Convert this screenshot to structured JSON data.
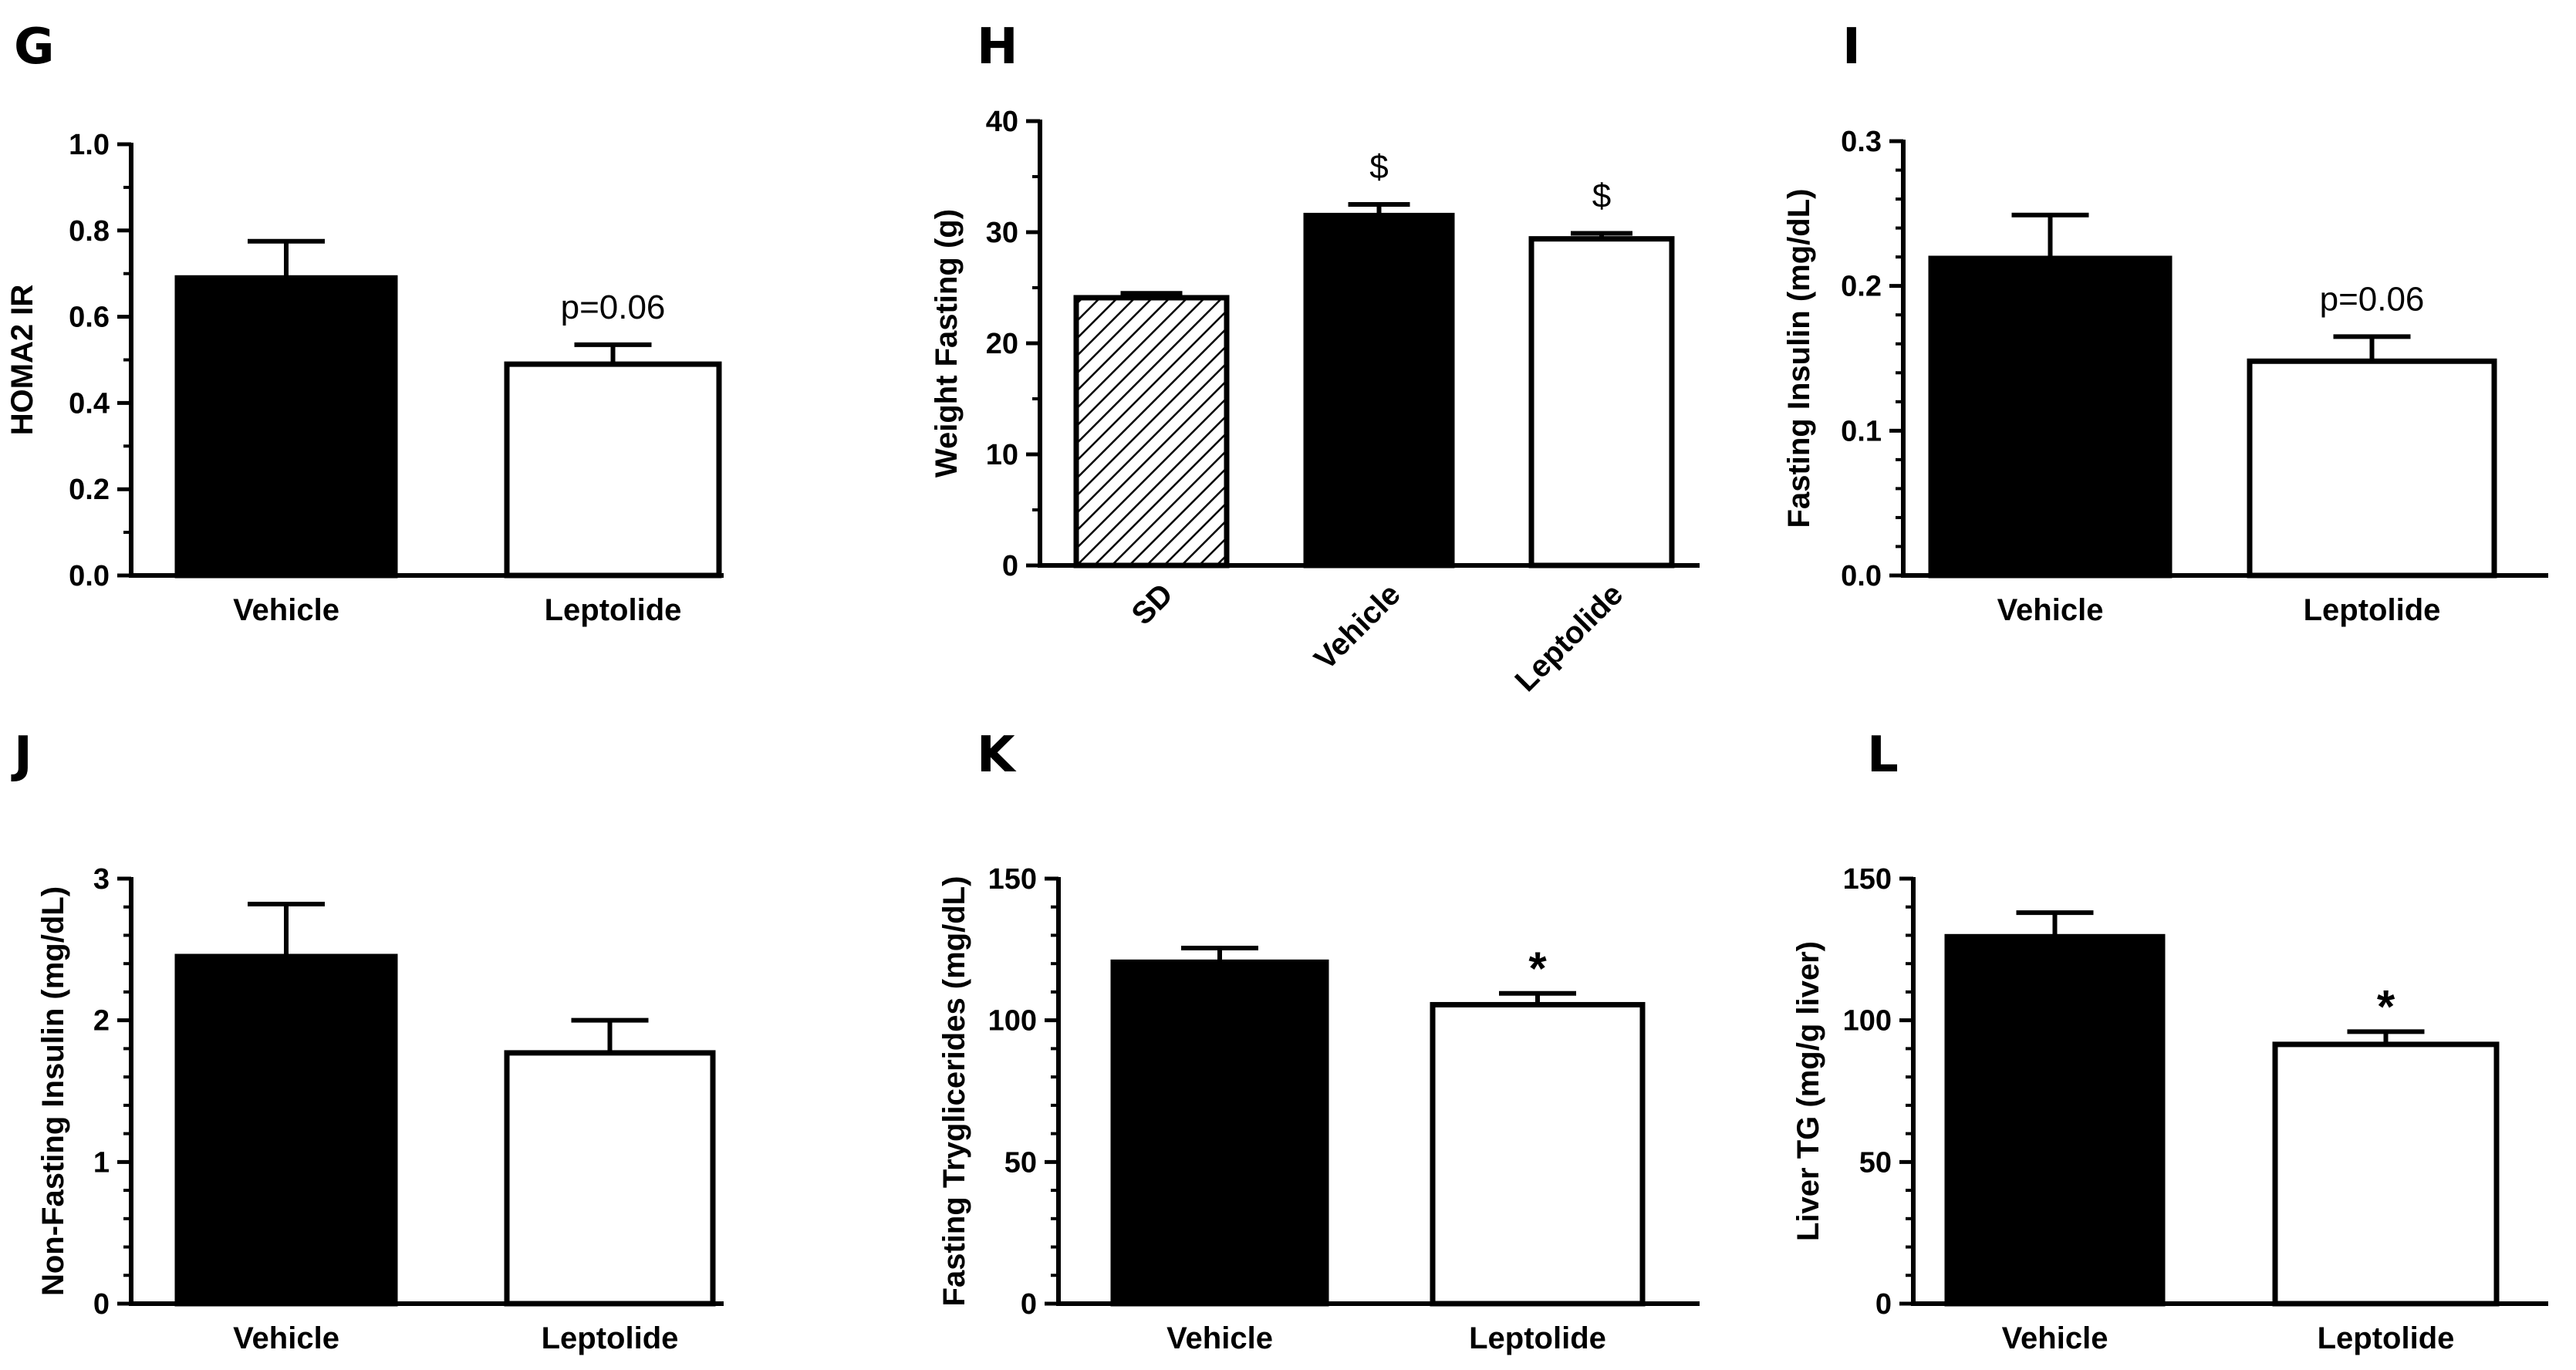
{
  "chart_data": [
    {
      "panel": "G",
      "type": "bar",
      "categories": [
        "Vehicle",
        "Leptolide"
      ],
      "values": [
        0.69,
        0.49
      ],
      "errors": [
        0.085,
        0.045
      ],
      "fills": [
        "solid",
        "white"
      ],
      "ylabel": "HOMA2 IR",
      "ylim": [
        0,
        1.0
      ],
      "yticks": [
        "0.0",
        "0.2",
        "0.4",
        "0.6",
        "0.8",
        "1.0"
      ],
      "annotations": [
        "",
        "p=0.06"
      ],
      "rotate_xlabels": false
    },
    {
      "panel": "H",
      "type": "bar",
      "categories": [
        "SD",
        "Vehicle",
        "Leptolide"
      ],
      "values": [
        24.1,
        31.5,
        29.4
      ],
      "errors": [
        0.4,
        1.0,
        0.5
      ],
      "fills": [
        "hatched",
        "solid",
        "white"
      ],
      "ylabel": "Weight Fasting (g)",
      "ylim": [
        0,
        40
      ],
      "yticks": [
        "0",
        "10",
        "20",
        "30",
        "40"
      ],
      "annotations": [
        "",
        "$",
        "$"
      ],
      "rotate_xlabels": true
    },
    {
      "panel": "I",
      "type": "bar",
      "categories": [
        "Vehicle",
        "Leptolide"
      ],
      "values": [
        0.219,
        0.148
      ],
      "errors": [
        0.03,
        0.017
      ],
      "fills": [
        "solid",
        "white"
      ],
      "ylabel": "Fasting Insulin (mg/dL)",
      "ylim": [
        0,
        0.3
      ],
      "yticks": [
        "0.0",
        "0.1",
        "0.2",
        "0.3"
      ],
      "annotations": [
        "",
        "p=0.06"
      ],
      "rotate_xlabels": false
    },
    {
      "panel": "J",
      "type": "bar",
      "categories": [
        "Vehicle",
        "Leptolide"
      ],
      "values": [
        2.45,
        1.77
      ],
      "errors": [
        0.37,
        0.23
      ],
      "fills": [
        "solid",
        "white"
      ],
      "ylabel": "Non-Fasting Insulin (mg/dL)",
      "ylim": [
        0,
        3
      ],
      "yticks": [
        "0",
        "1",
        "2",
        "3"
      ],
      "annotations": [
        "",
        ""
      ],
      "rotate_xlabels": false
    },
    {
      "panel": "K",
      "type": "bar",
      "categories": [
        "Vehicle",
        "Leptolide"
      ],
      "values": [
        120.5,
        105.5
      ],
      "errors": [
        5.0,
        4.0
      ],
      "fills": [
        "solid",
        "white"
      ],
      "ylabel": "Fasting Tryglicerides (mg/dL)",
      "ylim": [
        0,
        150
      ],
      "yticks": [
        "0",
        "50",
        "100",
        "150"
      ],
      "annotations": [
        "",
        "*"
      ],
      "rotate_xlabels": false
    },
    {
      "panel": "L",
      "type": "bar",
      "categories": [
        "Vehicle",
        "Leptolide"
      ],
      "values": [
        129.5,
        91.5
      ],
      "errors": [
        8.5,
        4.5
      ],
      "fills": [
        "solid",
        "white"
      ],
      "ylabel": "Liver TG (mg/g liver)",
      "ylim": [
        0,
        150
      ],
      "yticks": [
        "0",
        "50",
        "100",
        "150"
      ],
      "annotations": [
        "",
        "*"
      ],
      "rotate_xlabels": false
    }
  ]
}
